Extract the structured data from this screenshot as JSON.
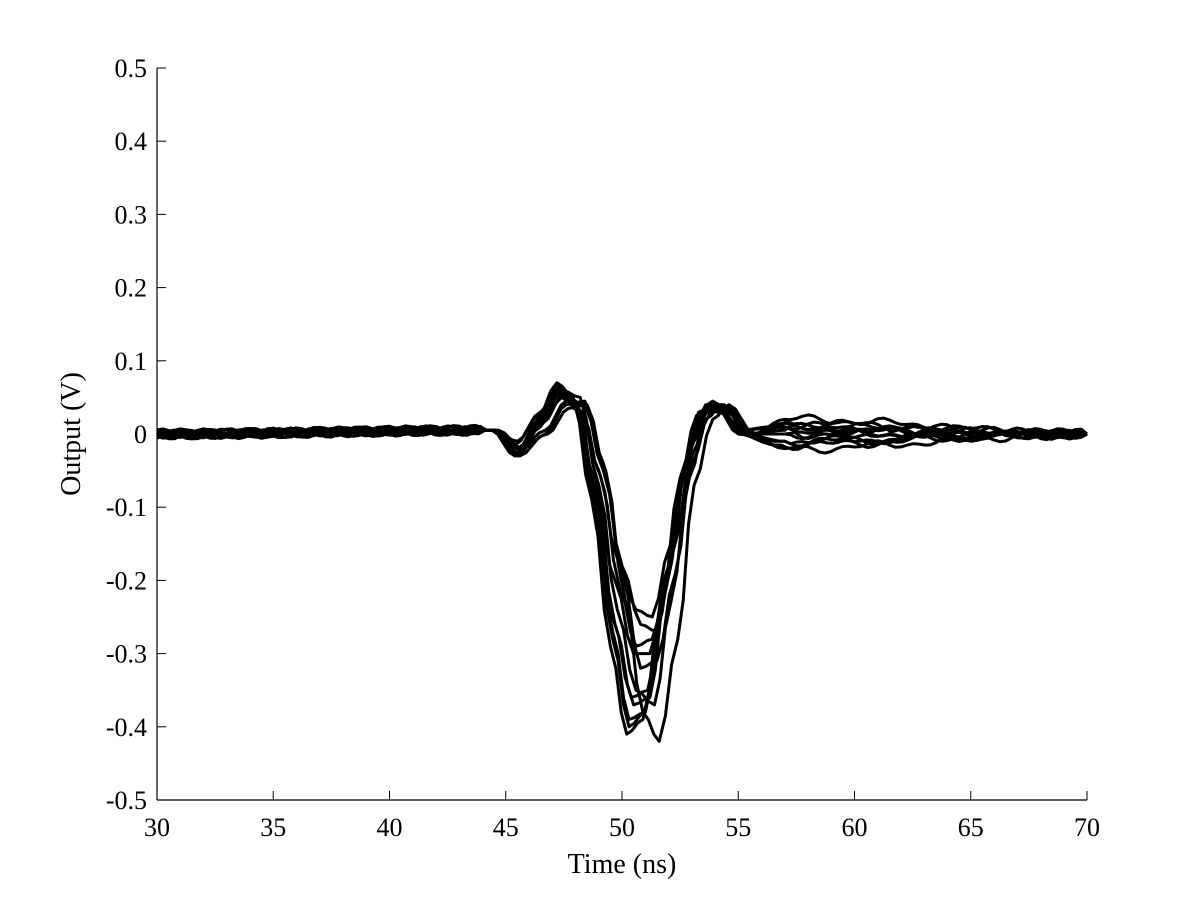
{
  "chart_data": {
    "type": "line",
    "title": "",
    "xlabel": "Time (ns)",
    "ylabel": "Output (V)",
    "xlim": [
      30,
      70
    ],
    "ylim": [
      -0.5,
      0.5
    ],
    "x_ticks": [
      "30",
      "35",
      "40",
      "45",
      "50",
      "55",
      "60",
      "65",
      "70"
    ],
    "y_ticks": [
      "-0.5",
      "-0.4",
      "-0.3",
      "-0.2",
      "-0.1",
      "0",
      "0.1",
      "0.2",
      "0.3",
      "0.4",
      "0.5"
    ],
    "grid": false,
    "legend": "none",
    "line_color": "#000000",
    "series": [
      {
        "x": [
          30,
          44.5,
          45.5,
          46.5,
          47.3,
          48.0,
          48.8,
          49.6,
          50.3,
          51.0,
          51.8,
          52.6,
          53.3,
          54.0,
          55.0,
          56.5,
          58,
          70
        ],
        "y": [
          0,
          0.005,
          -0.02,
          0.02,
          0.065,
          0.04,
          -0.1,
          -0.28,
          -0.4,
          -0.38,
          -0.22,
          -0.05,
          0.03,
          0.04,
          0.005,
          0.01,
          0,
          0
        ]
      },
      {
        "x": [
          30,
          44.5,
          45.5,
          46.5,
          47.2,
          48.0,
          48.8,
          49.6,
          50.4,
          51.1,
          51.9,
          52.7,
          53.4,
          54.2,
          55.2,
          57,
          70
        ],
        "y": [
          0,
          0.005,
          -0.03,
          0.01,
          0.055,
          0.045,
          -0.08,
          -0.25,
          -0.36,
          -0.35,
          -0.2,
          -0.04,
          0.03,
          0.03,
          0.0,
          -0.01,
          0
        ]
      },
      {
        "x": [
          30,
          44.5,
          45.5,
          46.5,
          47.3,
          48.0,
          48.8,
          49.7,
          50.5,
          51.2,
          52.0,
          52.8,
          53.6,
          54.4,
          55.5,
          57,
          70
        ],
        "y": [
          0,
          0.005,
          -0.01,
          0.03,
          0.06,
          0.035,
          -0.06,
          -0.2,
          -0.3,
          -0.3,
          -0.18,
          -0.03,
          0.04,
          0.04,
          0.0,
          0.01,
          0
        ]
      },
      {
        "x": [
          30,
          44.5,
          45.6,
          46.6,
          47.4,
          48.2,
          49.0,
          49.8,
          50.6,
          51.3,
          52.1,
          52.9,
          53.7,
          54.5,
          55.6,
          57,
          70
        ],
        "y": [
          0,
          0.005,
          -0.02,
          0.015,
          0.05,
          0.03,
          -0.05,
          -0.17,
          -0.24,
          -0.25,
          -0.15,
          -0.02,
          0.035,
          0.03,
          0.0,
          0.02,
          0
        ]
      },
      {
        "x": [
          30,
          44.5,
          45.5,
          46.5,
          47.4,
          48.2,
          49.0,
          49.8,
          50.6,
          51.4,
          52.1,
          52.9,
          53.6,
          54.3,
          55.4,
          57,
          70
        ],
        "y": [
          0,
          0.005,
          -0.025,
          0.02,
          0.06,
          0.05,
          -0.07,
          -0.24,
          -0.35,
          -0.37,
          -0.23,
          -0.06,
          0.02,
          0.04,
          0.0,
          -0.02,
          0
        ]
      },
      {
        "x": [
          30,
          44.6,
          45.6,
          46.7,
          47.6,
          48.4,
          49.2,
          50.0,
          50.8,
          51.5,
          52.3,
          53.0,
          53.8,
          54.6,
          55.6,
          57,
          70
        ],
        "y": [
          0,
          0.005,
          -0.03,
          0.0,
          0.04,
          0.045,
          -0.04,
          -0.19,
          -0.32,
          -0.31,
          -0.19,
          -0.04,
          0.03,
          0.035,
          0.0,
          0.015,
          0
        ]
      },
      {
        "x": [
          30,
          44.4,
          45.4,
          46.4,
          47.2,
          47.9,
          48.7,
          49.5,
          50.2,
          50.9,
          51.7,
          52.5,
          53.2,
          53.9,
          55.0,
          56.5,
          70
        ],
        "y": [
          0,
          0.005,
          -0.015,
          0.025,
          0.07,
          0.05,
          -0.09,
          -0.29,
          -0.41,
          -0.39,
          -0.23,
          -0.06,
          0.025,
          0.045,
          0.01,
          -0.01,
          0
        ]
      },
      {
        "x": [
          30,
          44.7,
          45.7,
          46.8,
          47.7,
          48.5,
          49.3,
          50.1,
          50.9,
          51.6,
          52.4,
          53.1,
          53.9,
          54.6,
          55.7,
          57,
          70
        ],
        "y": [
          0,
          0.005,
          -0.02,
          0.0,
          0.035,
          0.04,
          -0.05,
          -0.22,
          -0.38,
          -0.42,
          -0.28,
          -0.07,
          0.02,
          0.04,
          0.0,
          0.0,
          0
        ]
      },
      {
        "x": [
          30,
          44.5,
          45.5,
          46.6,
          47.5,
          48.3,
          49.1,
          49.9,
          50.6,
          51.3,
          52.1,
          52.8,
          53.5,
          54.3,
          55.3,
          57,
          70
        ],
        "y": [
          0,
          0.005,
          -0.03,
          0.015,
          0.055,
          0.03,
          -0.06,
          -0.21,
          -0.29,
          -0.28,
          -0.17,
          -0.03,
          0.03,
          0.03,
          0.0,
          0.005,
          0
        ]
      },
      {
        "x": [
          30,
          44.5,
          45.6,
          46.6,
          47.4,
          48.1,
          48.9,
          49.7,
          50.5,
          51.2,
          51.9,
          52.7,
          53.4,
          54.1,
          55.1,
          56.8,
          70
        ],
        "y": [
          0,
          0.005,
          -0.02,
          0.02,
          0.06,
          0.04,
          -0.08,
          -0.26,
          -0.37,
          -0.36,
          -0.21,
          -0.05,
          0.03,
          0.04,
          0.005,
          0.01,
          0
        ]
      },
      {
        "x": [
          30,
          44.6,
          45.6,
          46.7,
          47.6,
          48.4,
          49.2,
          50.0,
          50.8,
          51.5,
          52.2,
          53.0,
          53.7,
          54.4,
          55.5,
          57,
          70
        ],
        "y": [
          0,
          0.005,
          -0.02,
          0.005,
          0.045,
          0.04,
          -0.05,
          -0.18,
          -0.26,
          -0.27,
          -0.16,
          -0.03,
          0.035,
          0.035,
          0.0,
          0.0,
          0
        ]
      },
      {
        "x": [
          30,
          44.4,
          45.4,
          46.4,
          47.2,
          48.0,
          48.8,
          49.6,
          50.3,
          51.0,
          51.8,
          52.6,
          53.3,
          54.0,
          55.0,
          56.6,
          70
        ],
        "y": [
          0,
          0.005,
          -0.03,
          0.02,
          0.065,
          0.045,
          -0.09,
          -0.27,
          -0.39,
          -0.38,
          -0.22,
          -0.05,
          0.02,
          0.04,
          0.0,
          -0.015,
          0
        ]
      }
    ]
  }
}
